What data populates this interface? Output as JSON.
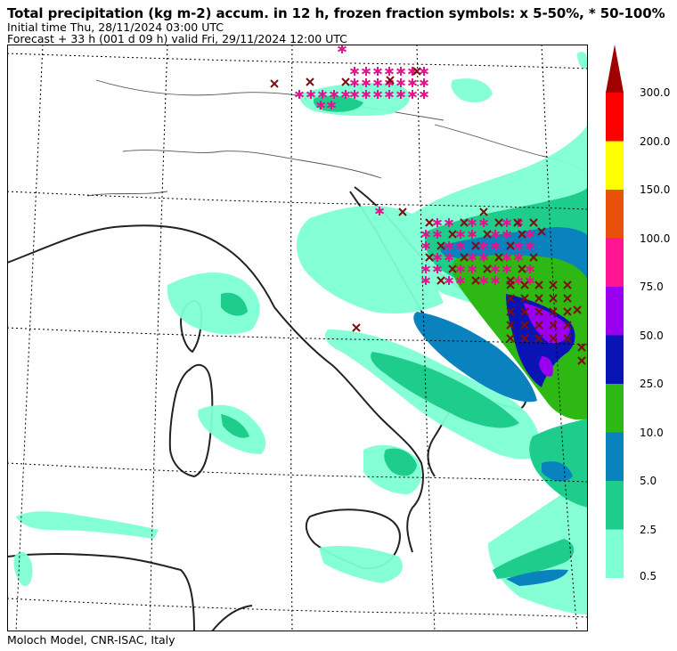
{
  "header": {
    "title": "Total precipitation (kg m-2) accum. in 12 h, frozen fraction symbols: x 5-50%, * 50-100%",
    "initial_time": "Initial time  Thu, 28/11/2024  03:00 UTC",
    "forecast": "Forecast  +  33 h  (001 d 09 h)  valid Fri, 29/11/2024 12:00 UTC"
  },
  "footer": "Moloch Model, CNR-ISAC, Italy",
  "legend": {
    "levels": [
      {
        "label": "0.5",
        "color": "#7fffd4"
      },
      {
        "label": "2.5",
        "color": "#1ecc8c"
      },
      {
        "label": "5.0",
        "color": "#0a82be"
      },
      {
        "label": "10.0",
        "color": "#2db814"
      },
      {
        "label": "25.0",
        "color": "#0a14b4"
      },
      {
        "label": "50.0",
        "color": "#9a00f0"
      },
      {
        "label": "75.0",
        "color": "#ff1493"
      },
      {
        "label": "100.0",
        "color": "#e8500a"
      },
      {
        "label": "150.0",
        "color": "#ffff00"
      },
      {
        "label": "200.0",
        "color": "#ff0000"
      },
      {
        "label": "300.0",
        "color": "#a00000"
      }
    ]
  },
  "map": {
    "region": "Italy and surrounding seas",
    "symbols": {
      "x_color": "#7a1010",
      "star_color": "#e0148c"
    }
  }
}
